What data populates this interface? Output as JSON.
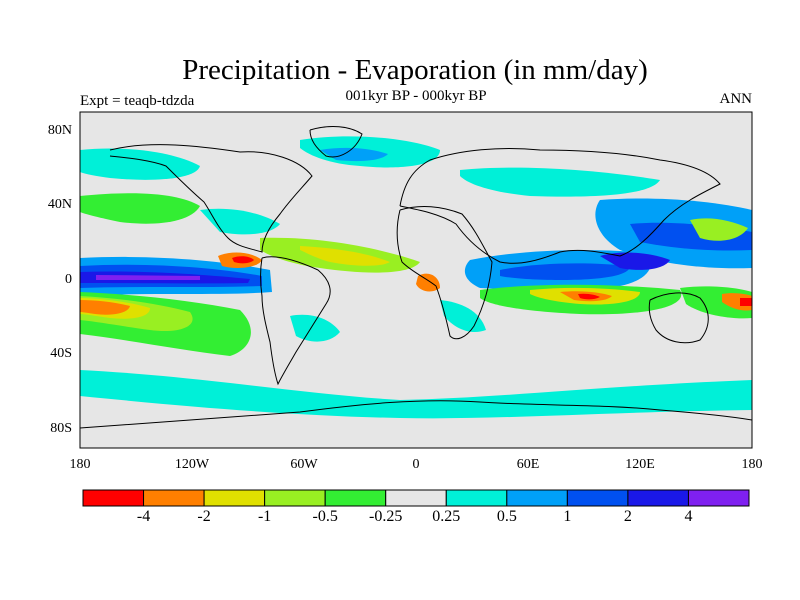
{
  "header": {
    "title": "Precipitation - Evaporation (in mm/day)",
    "subtitle": "001kyr BP - 000kyr BP",
    "experiment": "Expt = teaqb-tdzda",
    "season": "ANN"
  },
  "axes": {
    "lat_ticks": [
      "80N",
      "40N",
      "0",
      "40S",
      "80S"
    ],
    "lon_ticks": [
      "180",
      "120W",
      "60W",
      "0",
      "60E",
      "120E",
      "180"
    ]
  },
  "colorbar": {
    "colors": [
      "#ff0000",
      "#ff7f00",
      "#e0e000",
      "#99ef22",
      "#33ee33",
      "#e6e6e6",
      "#00f0d8",
      "#00a0f8",
      "#0050f0",
      "#1a18e8",
      "#7f20f0"
    ],
    "labels": [
      "-4",
      "-2",
      "-1",
      "-0.5",
      "-0.25",
      "0.25",
      "0.5",
      "1",
      "2",
      "4"
    ]
  },
  "map": {
    "background_color": "#e6e6e6",
    "coastline_color": "#000000"
  }
}
